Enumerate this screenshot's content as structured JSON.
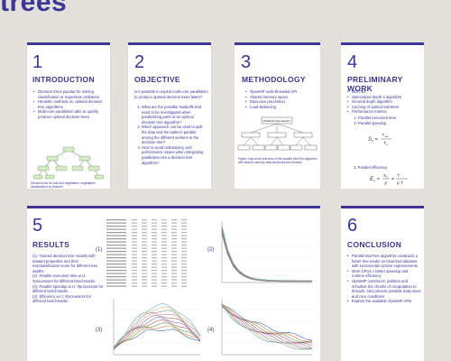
{
  "title": "trees",
  "cards": {
    "intro": {
      "num": "1",
      "heading": "INTRODUCTION",
      "bullets": [
        "Decision trees popular for solving classification or regression problems",
        "Heuristic methods vs. optimal decision tree algorithms",
        "Multi-core parallelism able to quickly produce optimal decision trees"
      ],
      "caption": "Decision tree for fruit and vegetables: vegetables classification by features"
    },
    "objective": {
      "num": "2",
      "heading": "OBJECTIVE",
      "lead": "Is it possible to exploit multi-core parallelism to produce optimal decision trees faster?",
      "items": [
        "What are the possible tradeoffs that need to be investigated when parallelizing parts of an optimal decision tree algorithm?",
        "Which approach can be used to split the data and the tasks in parallel among the different workers in the decision tree?",
        "How to avoid redundancy and performance issues when integrating parallelism into a decision tree algorithm?"
      ]
    },
    "method": {
      "num": "3",
      "heading": "METHODOLOGY",
      "bullets": [
        "OpenMP multi-threaded API",
        "Shared memory space",
        "Data race prevention",
        "Load Balancing"
      ],
      "diagram_root": "Parallel MurTree algorithm",
      "caption": "Figure: high-level overview of the parallel MurTree algorithm with shared memory data structures and threads"
    },
    "prelim": {
      "num": "4",
      "heading": "PRELIMINARY WORK",
      "bullets": [
        "MurTree",
        "Specialized depth-2 algorithm",
        "General depth algorithm",
        "Caching of optimal subtrees",
        "Performance metrics"
      ],
      "items": [
        "Parallel execution time",
        "Parallel speedup"
      ],
      "item3": "3. Parallel efficiency"
    },
    "results": {
      "num": "5",
      "heading": "RESULTS",
      "lines": [
        "(1): Trained decision tree models with dataset properties and their misclassification score for different tree depths",
        "(2): Parallel execution time w.r.t. #processors for different benchmarks",
        "(3): Parallel speedup w.r.t. #processors for different benchmarks",
        "(4): Efficiency w.r.t. #processors for different benchmarks"
      ],
      "labels": [
        "(1)",
        "(2)",
        "(3)",
        "(4)"
      ]
    },
    "conclusion": {
      "num": "6",
      "heading": "CONCLUSION",
      "bullets": [
        "Parallel MurTree algorithm constructs a faster tree model on binarized datasets with incremental runtime improvements",
        "More CPUs ≠ better speedup and runtime efficiency",
        "OpenMP constructs: partition and schedule the chunks of computation to threads. Also prevent possible data races and race conditions",
        "Explore the available OpenMP APIs"
      ]
    }
  },
  "colors": {
    "accent": "#3b3596",
    "background": "#e3e0db",
    "card": "#ffffff",
    "series": [
      "#3b6ea5",
      "#e07b39",
      "#5ea35b",
      "#c44e52",
      "#8172b2",
      "#937860",
      "#da8bc3",
      "#8c8c8c",
      "#ccb974",
      "#64b5cd"
    ]
  }
}
